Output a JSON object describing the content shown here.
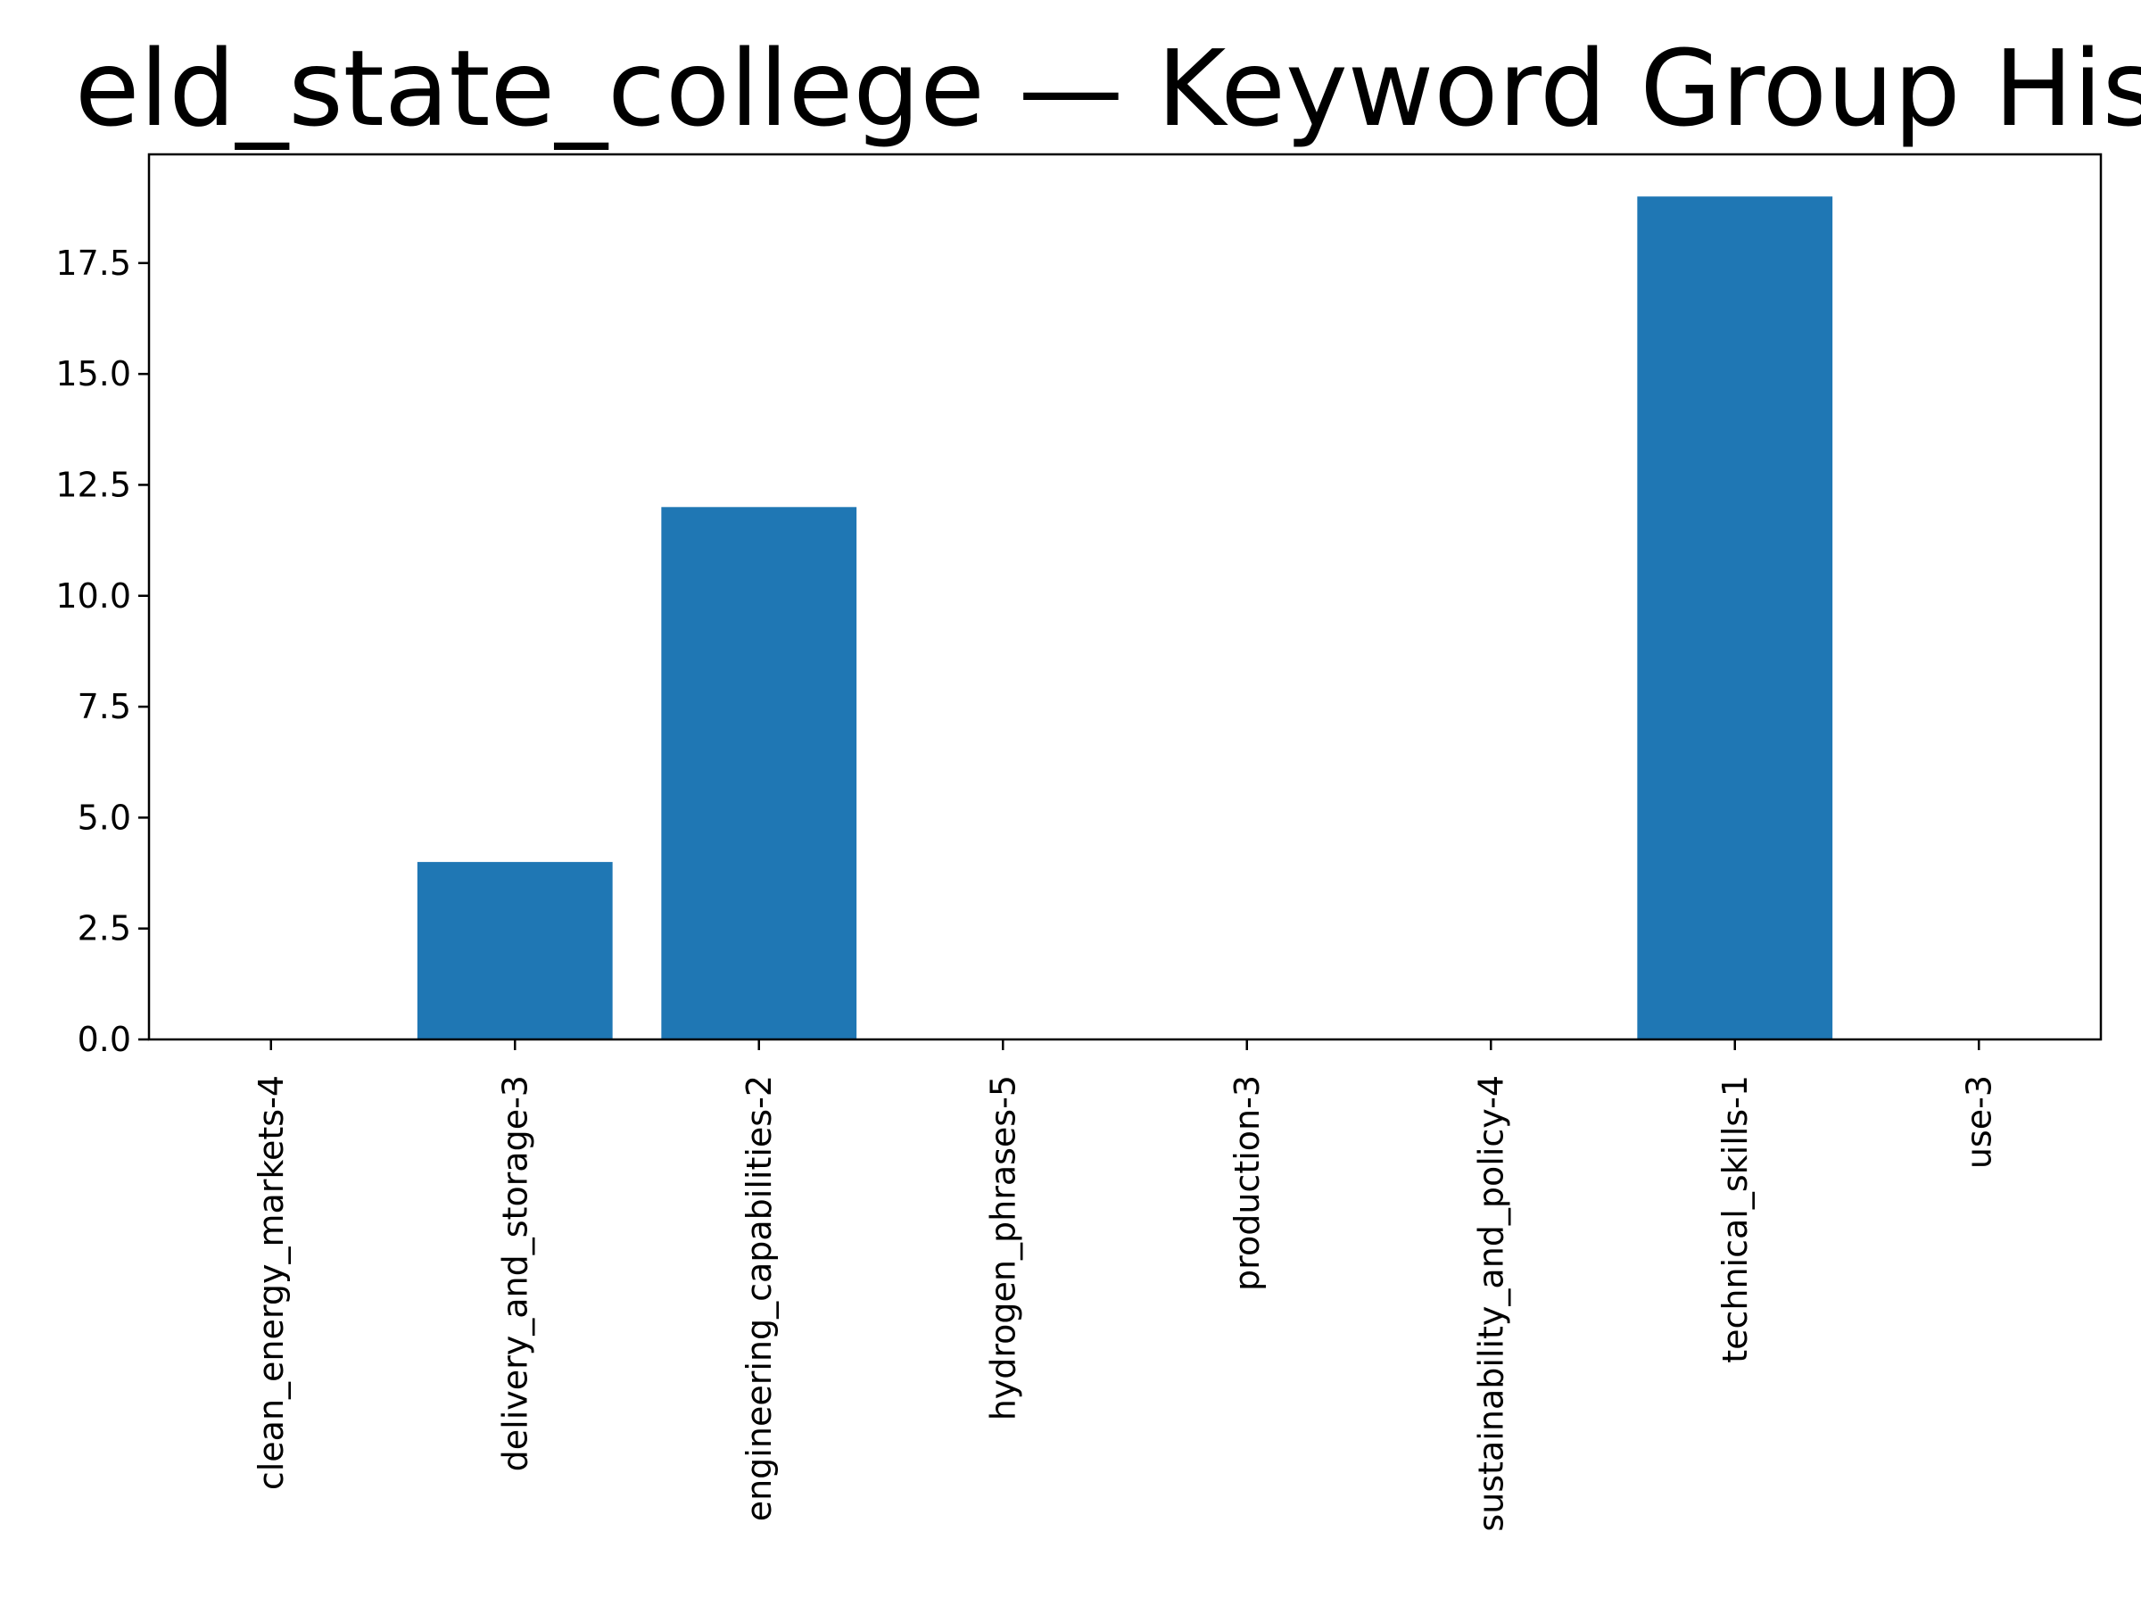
{
  "chart_data": {
    "type": "bar",
    "title": "eld_state_college — Keyword Group His",
    "xlabel": "",
    "ylabel": "",
    "categories": [
      "clean_energy_markets-4",
      "delivery_and_storage-3",
      "engineering_capabilities-2",
      "hydrogen_phrases-5",
      "production-3",
      "sustainability_and_policy-4",
      "technical_skills-1",
      "use-3"
    ],
    "values": [
      0,
      4,
      12,
      0,
      0,
      0,
      19,
      0
    ],
    "ylim": [
      0,
      19.95
    ],
    "yticks": [
      "0.0",
      "2.5",
      "5.0",
      "7.5",
      "10.0",
      "12.5",
      "15.0",
      "17.5"
    ],
    "bar_color": "#1f77b4",
    "grid": false,
    "legend": "none"
  }
}
